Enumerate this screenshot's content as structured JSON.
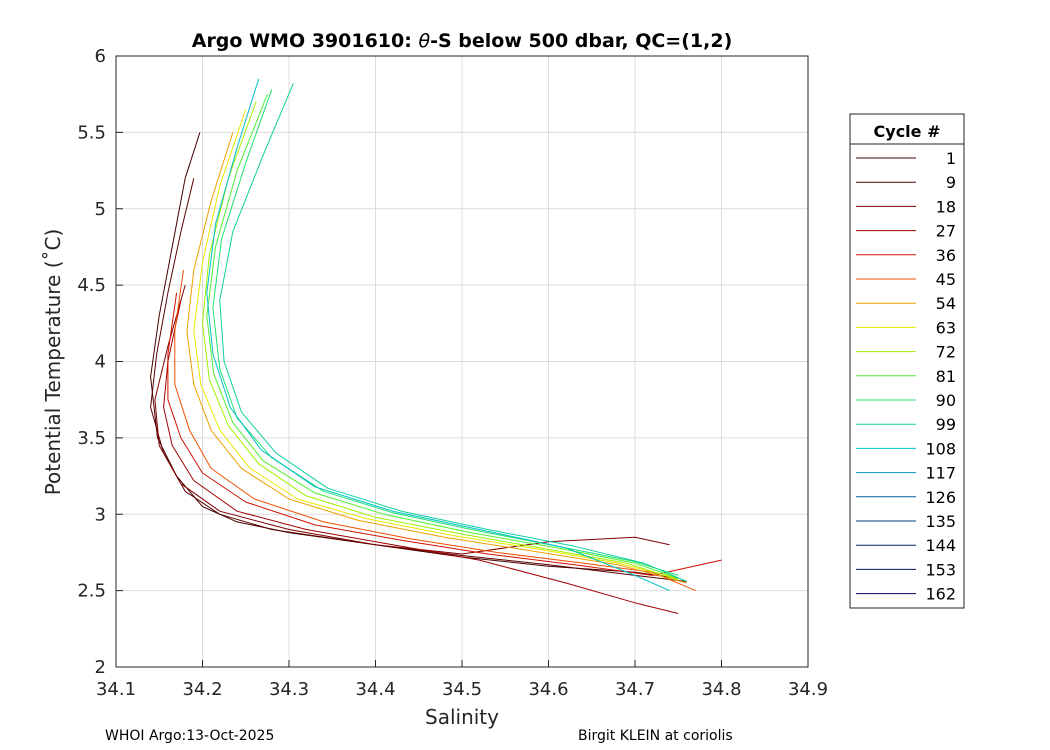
{
  "chart_data": {
    "type": "line",
    "title": "Argo WMO 3901610: θ-S below 500 dbar,  QC=(1,2)",
    "title_prefix": "Argo WMO 3901610: ",
    "title_theta": "θ",
    "title_suffix": "-S below 500 dbar,  QC=(1,2)",
    "xlabel": "Salinity",
    "ylabel": "Potential Temperature (˚C)",
    "xlim": [
      34.1,
      34.9
    ],
    "ylim": [
      2,
      6
    ],
    "xticks": [
      "34.1",
      "34.2",
      "34.3",
      "34.4",
      "34.5",
      "34.6",
      "34.7",
      "34.8",
      "34.9"
    ],
    "yticks": [
      "2",
      "2.5",
      "3",
      "3.5",
      "4",
      "4.5",
      "5",
      "5.5",
      "6"
    ],
    "grid": true,
    "legend_title": "Cycle #",
    "legend_position": "right",
    "series": [
      {
        "name": "1",
        "color": "#420000",
        "points": [
          [
            34.197,
            5.5
          ],
          [
            34.18,
            5.2
          ],
          [
            34.165,
            4.75
          ],
          [
            34.15,
            4.3
          ],
          [
            34.14,
            3.9
          ],
          [
            34.148,
            3.5
          ],
          [
            34.17,
            3.25
          ],
          [
            34.2,
            3.05
          ],
          [
            34.24,
            2.95
          ],
          [
            34.3,
            2.88
          ],
          [
            34.4,
            2.8
          ],
          [
            34.5,
            2.72
          ],
          [
            34.6,
            2.66
          ],
          [
            34.7,
            2.62
          ],
          [
            34.75,
            2.58
          ]
        ]
      },
      {
        "name": "9",
        "color": "#5c0000",
        "points": [
          [
            34.19,
            5.2
          ],
          [
            34.175,
            4.85
          ],
          [
            34.16,
            4.45
          ],
          [
            34.147,
            4.05
          ],
          [
            34.14,
            3.7
          ],
          [
            34.155,
            3.4
          ],
          [
            34.18,
            3.15
          ],
          [
            34.22,
            3.0
          ],
          [
            34.28,
            2.9
          ],
          [
            34.4,
            2.8
          ],
          [
            34.5,
            2.73
          ],
          [
            34.6,
            2.67
          ],
          [
            34.7,
            2.6
          ],
          [
            34.76,
            2.56
          ]
        ]
      },
      {
        "name": "18",
        "color": "#800000",
        "points": [
          [
            34.18,
            4.5
          ],
          [
            34.16,
            4.1
          ],
          [
            34.145,
            3.75
          ],
          [
            34.15,
            3.45
          ],
          [
            34.175,
            3.2
          ],
          [
            34.22,
            3.02
          ],
          [
            34.3,
            2.9
          ],
          [
            34.4,
            2.8
          ],
          [
            34.5,
            2.74
          ],
          [
            34.6,
            2.82
          ],
          [
            34.7,
            2.85
          ],
          [
            34.74,
            2.8
          ]
        ]
      },
      {
        "name": "27",
        "color": "#a00000",
        "points": [
          [
            34.175,
            4.4
          ],
          [
            34.16,
            4.0
          ],
          [
            34.155,
            3.7
          ],
          [
            34.165,
            3.45
          ],
          [
            34.19,
            3.22
          ],
          [
            34.24,
            3.02
          ],
          [
            34.32,
            2.9
          ],
          [
            34.42,
            2.8
          ],
          [
            34.52,
            2.7
          ],
          [
            34.62,
            2.55
          ],
          [
            34.7,
            2.42
          ],
          [
            34.75,
            2.35
          ]
        ]
      },
      {
        "name": "36",
        "color": "#d01000",
        "points": [
          [
            34.17,
            4.45
          ],
          [
            34.16,
            4.05
          ],
          [
            34.16,
            3.75
          ],
          [
            34.175,
            3.5
          ],
          [
            34.2,
            3.27
          ],
          [
            34.25,
            3.08
          ],
          [
            34.33,
            2.93
          ],
          [
            34.43,
            2.83
          ],
          [
            34.53,
            2.74
          ],
          [
            34.63,
            2.67
          ],
          [
            34.72,
            2.6
          ],
          [
            34.8,
            2.7
          ]
        ]
      },
      {
        "name": "45",
        "color": "#f05000",
        "points": [
          [
            34.178,
            4.6
          ],
          [
            34.168,
            4.2
          ],
          [
            34.168,
            3.85
          ],
          [
            34.185,
            3.55
          ],
          [
            34.21,
            3.3
          ],
          [
            34.26,
            3.1
          ],
          [
            34.34,
            2.95
          ],
          [
            34.44,
            2.84
          ],
          [
            34.54,
            2.75
          ],
          [
            34.64,
            2.68
          ],
          [
            34.72,
            2.62
          ],
          [
            34.77,
            2.5
          ]
        ]
      },
      {
        "name": "54",
        "color": "#f0a000",
        "points": [
          [
            34.235,
            5.5
          ],
          [
            34.21,
            5.05
          ],
          [
            34.19,
            4.6
          ],
          [
            34.182,
            4.2
          ],
          [
            34.19,
            3.85
          ],
          [
            34.21,
            3.55
          ],
          [
            34.245,
            3.3
          ],
          [
            34.3,
            3.1
          ],
          [
            34.38,
            2.96
          ],
          [
            34.48,
            2.85
          ],
          [
            34.58,
            2.76
          ],
          [
            34.68,
            2.67
          ],
          [
            34.76,
            2.55
          ]
        ]
      },
      {
        "name": "63",
        "color": "#e8e800",
        "points": [
          [
            34.25,
            5.65
          ],
          [
            34.22,
            5.15
          ],
          [
            34.2,
            4.65
          ],
          [
            34.19,
            4.2
          ],
          [
            34.198,
            3.85
          ],
          [
            34.22,
            3.55
          ],
          [
            34.255,
            3.3
          ],
          [
            34.31,
            3.1
          ],
          [
            34.39,
            2.97
          ],
          [
            34.49,
            2.86
          ],
          [
            34.59,
            2.77
          ],
          [
            34.68,
            2.68
          ],
          [
            34.75,
            2.58
          ]
        ]
      },
      {
        "name": "72",
        "color": "#a0f000",
        "points": [
          [
            34.262,
            5.7
          ],
          [
            34.23,
            5.2
          ],
          [
            34.208,
            4.7
          ],
          [
            34.2,
            4.25
          ],
          [
            34.208,
            3.88
          ],
          [
            34.23,
            3.58
          ],
          [
            34.265,
            3.33
          ],
          [
            34.32,
            3.12
          ],
          [
            34.4,
            2.98
          ],
          [
            34.5,
            2.87
          ],
          [
            34.6,
            2.77
          ],
          [
            34.69,
            2.68
          ],
          [
            34.75,
            2.57
          ]
        ]
      },
      {
        "name": "81",
        "color": "#50f030",
        "points": [
          [
            34.275,
            5.75
          ],
          [
            34.24,
            5.25
          ],
          [
            34.215,
            4.75
          ],
          [
            34.205,
            4.3
          ],
          [
            34.213,
            3.92
          ],
          [
            34.235,
            3.6
          ],
          [
            34.27,
            3.35
          ],
          [
            34.33,
            3.14
          ],
          [
            34.41,
            3.0
          ],
          [
            34.51,
            2.88
          ],
          [
            34.61,
            2.78
          ],
          [
            34.7,
            2.68
          ],
          [
            34.75,
            2.58
          ]
        ]
      },
      {
        "name": "90",
        "color": "#20e070",
        "points": [
          [
            34.28,
            5.78
          ],
          [
            34.25,
            5.3
          ],
          [
            34.222,
            4.8
          ],
          [
            34.212,
            4.35
          ],
          [
            34.22,
            3.95
          ],
          [
            34.24,
            3.63
          ],
          [
            34.28,
            3.37
          ],
          [
            34.34,
            3.15
          ],
          [
            34.42,
            3.01
          ],
          [
            34.52,
            2.89
          ],
          [
            34.62,
            2.78
          ],
          [
            34.7,
            2.69
          ],
          [
            34.75,
            2.6
          ]
        ]
      },
      {
        "name": "99",
        "color": "#10d0a0",
        "points": [
          [
            34.305,
            5.82
          ],
          [
            34.27,
            5.35
          ],
          [
            34.235,
            4.85
          ],
          [
            34.22,
            4.4
          ],
          [
            34.225,
            4.0
          ],
          [
            34.245,
            3.67
          ],
          [
            34.285,
            3.4
          ],
          [
            34.345,
            3.17
          ],
          [
            34.43,
            3.02
          ],
          [
            34.53,
            2.9
          ],
          [
            34.63,
            2.79
          ],
          [
            34.71,
            2.68
          ],
          [
            34.76,
            2.56
          ]
        ]
      },
      {
        "name": "108",
        "color": "#00c0c8",
        "points": [
          [
            34.265,
            5.85
          ],
          [
            34.24,
            5.4
          ],
          [
            34.215,
            4.9
          ],
          [
            34.205,
            4.45
          ],
          [
            34.212,
            4.05
          ],
          [
            34.232,
            3.7
          ],
          [
            34.268,
            3.42
          ],
          [
            34.33,
            3.18
          ],
          [
            34.42,
            3.02
          ],
          [
            34.52,
            2.9
          ],
          [
            34.62,
            2.78
          ],
          [
            34.7,
            2.6
          ],
          [
            34.74,
            2.5
          ]
        ]
      },
      {
        "name": "117",
        "color": "#0090c0",
        "points": []
      },
      {
        "name": "126",
        "color": "#0060a0",
        "points": []
      },
      {
        "name": "135",
        "color": "#004080",
        "points": []
      },
      {
        "name": "144",
        "color": "#002060",
        "points": []
      },
      {
        "name": "153",
        "color": "#001048",
        "points": []
      },
      {
        "name": "162",
        "color": "#00006a",
        "points": []
      }
    ]
  },
  "footer": {
    "left": "WHOI Argo:13-Oct-2025",
    "right": "Birgit KLEIN at coriolis"
  }
}
